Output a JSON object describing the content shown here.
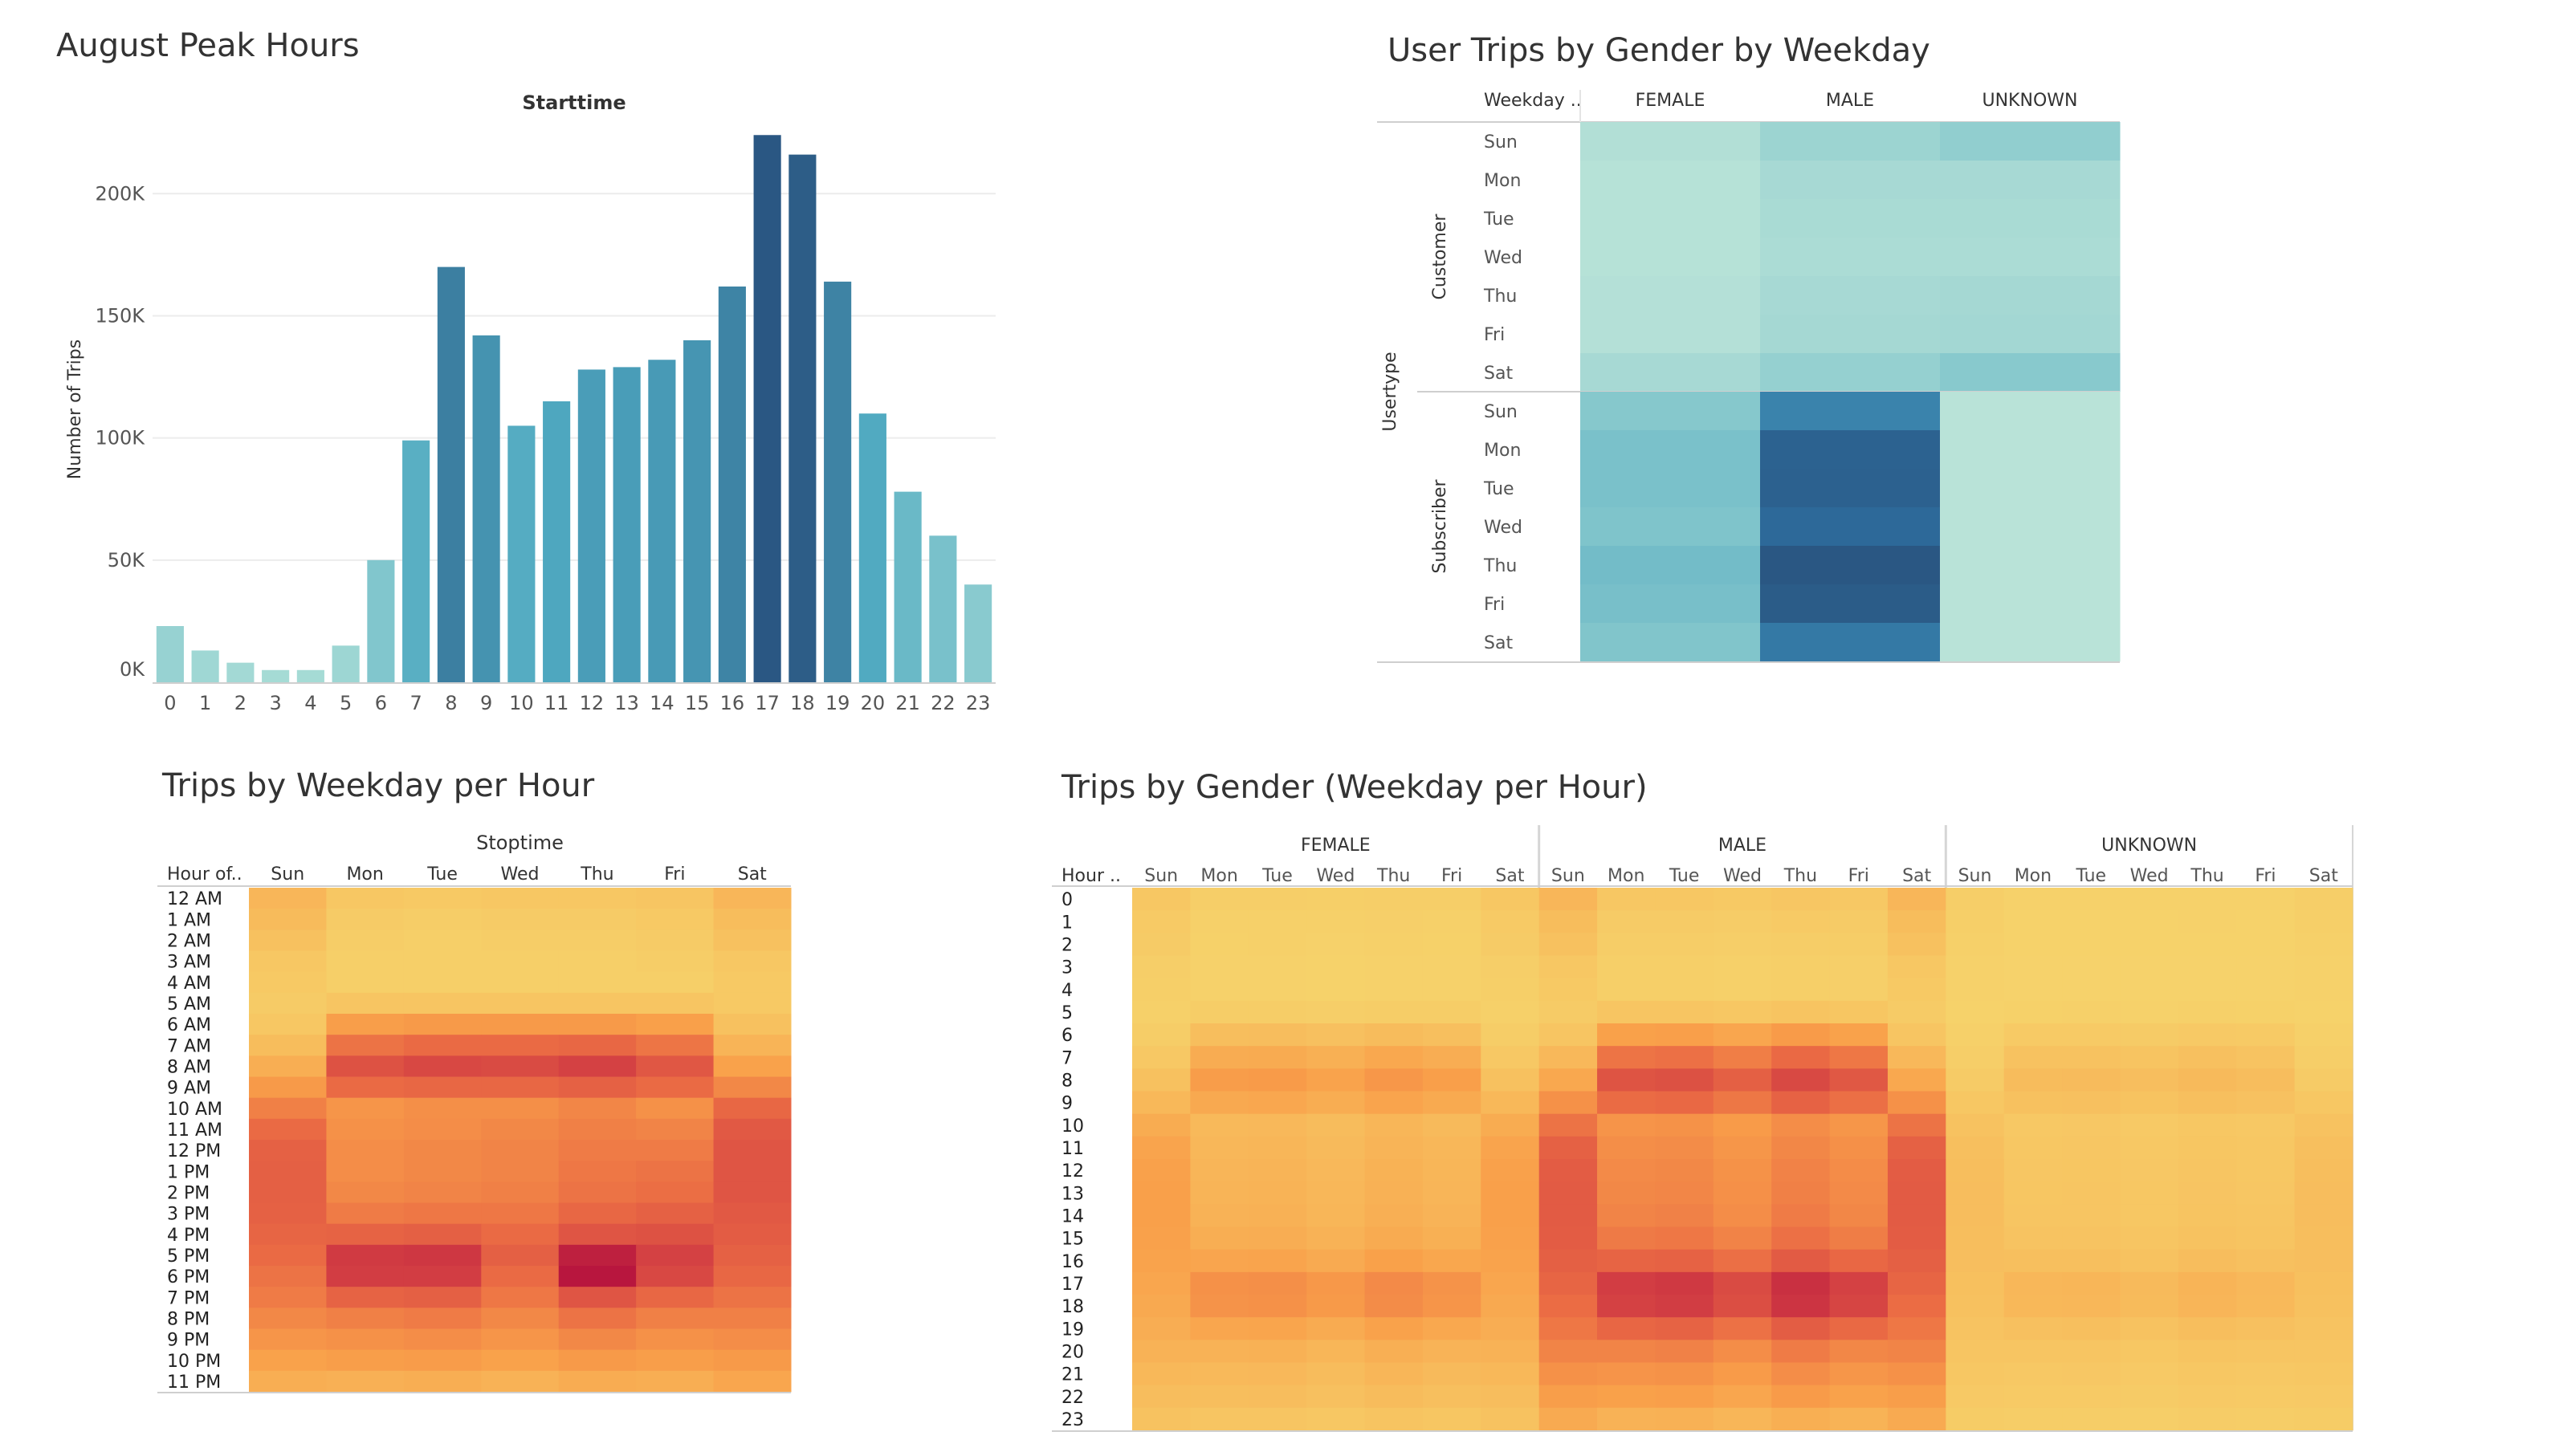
{
  "colors": {
    "bar_scale": [
      "#a9ddd6",
      "#4fa9c1",
      "#2a5783"
    ],
    "teal_scale": [
      "#bde5d9",
      "#86c8cc",
      "#4ba3c1",
      "#2e6e9e",
      "#2a5783"
    ],
    "heat_scale": [
      "#f6d36b",
      "#f9a04a",
      "#ea6a44",
      "#d33f43",
      "#b8163e"
    ]
  },
  "peak_hours": {
    "title": "August Peak Hours",
    "chart_data": {
      "type": "bar",
      "title": "Starttime",
      "xlabel": "",
      "ylabel": "Number of Trips",
      "categories": [
        "0",
        "1",
        "2",
        "3",
        "4",
        "5",
        "6",
        "7",
        "8",
        "9",
        "10",
        "11",
        "12",
        "13",
        "14",
        "15",
        "16",
        "17",
        "18",
        "19",
        "20",
        "21",
        "22",
        "23"
      ],
      "values": [
        23000,
        13000,
        8000,
        5000,
        5000,
        15000,
        50000,
        99000,
        170000,
        142000,
        105000,
        115000,
        128000,
        129000,
        132000,
        140000,
        162000,
        224000,
        216000,
        164000,
        110000,
        78000,
        60000,
        40000
      ],
      "ylim": [
        0,
        230000
      ],
      "yticks": [
        0,
        50000,
        100000,
        150000,
        200000
      ],
      "ytick_labels": [
        "0K",
        "50K",
        "100K",
        "150K",
        "200K"
      ],
      "grid": true
    }
  },
  "gender_weekday": {
    "title": "User Trips by Gender by Weekday",
    "chart_data": {
      "type": "heatmap",
      "row_group_label": "Usertype",
      "row_header": "Weekday ..",
      "row_groups": [
        {
          "name": "Customer",
          "rows": [
            "Sun",
            "Mon",
            "Tue",
            "Wed",
            "Thu",
            "Fri",
            "Sat"
          ]
        },
        {
          "name": "Subscriber",
          "rows": [
            "Sun",
            "Mon",
            "Tue",
            "Wed",
            "Thu",
            "Fri",
            "Sat"
          ]
        }
      ],
      "columns": [
        "FEMALE",
        "MALE",
        "UNKNOWN"
      ],
      "values": [
        [
          0.05,
          0.15,
          0.2
        ],
        [
          0.03,
          0.1,
          0.1
        ],
        [
          0.03,
          0.09,
          0.09
        ],
        [
          0.03,
          0.08,
          0.08
        ],
        [
          0.04,
          0.1,
          0.11
        ],
        [
          0.04,
          0.11,
          0.12
        ],
        [
          0.1,
          0.18,
          0.24
        ],
        [
          0.25,
          0.65,
          0.02
        ],
        [
          0.3,
          0.88,
          0.02
        ],
        [
          0.3,
          0.89,
          0.02
        ],
        [
          0.28,
          0.8,
          0.02
        ],
        [
          0.33,
          1.0,
          0.02
        ],
        [
          0.31,
          0.95,
          0.02
        ],
        [
          0.27,
          0.7,
          0.02
        ]
      ]
    }
  },
  "weekday_hour": {
    "title": "Trips by Weekday per Hour",
    "chart_data": {
      "type": "heatmap",
      "column_group_label": "Stoptime",
      "row_header": "Hour of..",
      "columns": [
        "Sun",
        "Mon",
        "Tue",
        "Wed",
        "Thu",
        "Fri",
        "Sat"
      ],
      "rows": [
        "12 AM",
        "1 AM",
        "2 AM",
        "3 AM",
        "4 AM",
        "5 AM",
        "6 AM",
        "7 AM",
        "8 AM",
        "9 AM",
        "10 AM",
        "11 AM",
        "12 PM",
        "1 PM",
        "2 PM",
        "3 PM",
        "4 PM",
        "5 PM",
        "6 PM",
        "7 PM",
        "8 PM",
        "9 PM",
        "10 PM",
        "11 PM"
      ],
      "values": [
        [
          0.14,
          0.06,
          0.05,
          0.06,
          0.06,
          0.07,
          0.14
        ],
        [
          0.12,
          0.04,
          0.03,
          0.04,
          0.04,
          0.05,
          0.11
        ],
        [
          0.09,
          0.03,
          0.02,
          0.03,
          0.03,
          0.04,
          0.09
        ],
        [
          0.06,
          0.02,
          0.02,
          0.02,
          0.02,
          0.03,
          0.06
        ],
        [
          0.05,
          0.02,
          0.02,
          0.02,
          0.02,
          0.02,
          0.05
        ],
        [
          0.04,
          0.07,
          0.07,
          0.07,
          0.07,
          0.07,
          0.05
        ],
        [
          0.06,
          0.26,
          0.28,
          0.28,
          0.28,
          0.25,
          0.09
        ],
        [
          0.11,
          0.46,
          0.5,
          0.5,
          0.52,
          0.45,
          0.15
        ],
        [
          0.18,
          0.64,
          0.7,
          0.68,
          0.74,
          0.61,
          0.24
        ],
        [
          0.28,
          0.5,
          0.52,
          0.52,
          0.55,
          0.5,
          0.36
        ],
        [
          0.4,
          0.3,
          0.33,
          0.33,
          0.37,
          0.32,
          0.52
        ],
        [
          0.5,
          0.32,
          0.34,
          0.36,
          0.4,
          0.38,
          0.6
        ],
        [
          0.55,
          0.34,
          0.36,
          0.38,
          0.42,
          0.42,
          0.62
        ],
        [
          0.56,
          0.34,
          0.36,
          0.38,
          0.44,
          0.46,
          0.62
        ],
        [
          0.56,
          0.36,
          0.38,
          0.4,
          0.46,
          0.48,
          0.62
        ],
        [
          0.55,
          0.42,
          0.44,
          0.44,
          0.52,
          0.55,
          0.6
        ],
        [
          0.53,
          0.54,
          0.56,
          0.5,
          0.62,
          0.64,
          0.58
        ],
        [
          0.5,
          0.78,
          0.8,
          0.56,
          0.94,
          0.74,
          0.55
        ],
        [
          0.46,
          0.76,
          0.76,
          0.5,
          1.0,
          0.7,
          0.52
        ],
        [
          0.42,
          0.54,
          0.56,
          0.44,
          0.62,
          0.52,
          0.46
        ],
        [
          0.36,
          0.4,
          0.42,
          0.36,
          0.46,
          0.4,
          0.4
        ],
        [
          0.3,
          0.32,
          0.34,
          0.3,
          0.36,
          0.32,
          0.34
        ],
        [
          0.24,
          0.26,
          0.27,
          0.24,
          0.28,
          0.26,
          0.28
        ],
        [
          0.18,
          0.17,
          0.18,
          0.16,
          0.19,
          0.18,
          0.22
        ]
      ]
    }
  },
  "gender_weekday_hour": {
    "title": "Trips by Gender (Weekday per Hour)",
    "chart_data": {
      "type": "heatmap",
      "row_header": "Hour ..",
      "groups": [
        "FEMALE",
        "MALE",
        "UNKNOWN"
      ],
      "days": [
        "Sun",
        "Mon",
        "Tue",
        "Wed",
        "Thu",
        "Fri",
        "Sat"
      ],
      "rows": [
        "0",
        "1",
        "2",
        "3",
        "4",
        "5",
        "6",
        "7",
        "8",
        "9",
        "10",
        "11",
        "12",
        "13",
        "14",
        "15",
        "16",
        "17",
        "18",
        "19",
        "20",
        "21",
        "22",
        "23"
      ],
      "hour_profile_weekday": [
        0.06,
        0.04,
        0.03,
        0.02,
        0.02,
        0.07,
        0.26,
        0.48,
        0.66,
        0.52,
        0.32,
        0.35,
        0.37,
        0.38,
        0.4,
        0.45,
        0.56,
        0.8,
        0.78,
        0.55,
        0.4,
        0.32,
        0.26,
        0.17
      ],
      "hour_profile_weekend": [
        0.14,
        0.11,
        0.09,
        0.06,
        0.05,
        0.04,
        0.07,
        0.13,
        0.21,
        0.32,
        0.46,
        0.55,
        0.58,
        0.59,
        0.59,
        0.58,
        0.56,
        0.53,
        0.49,
        0.44,
        0.38,
        0.32,
        0.26,
        0.2
      ],
      "day_factor": [
        1.0,
        0.95,
        0.98,
        0.85,
        1.05,
        0.92,
        1.0
      ],
      "group_scale": [
        0.42,
        1.0,
        0.18
      ]
    }
  }
}
